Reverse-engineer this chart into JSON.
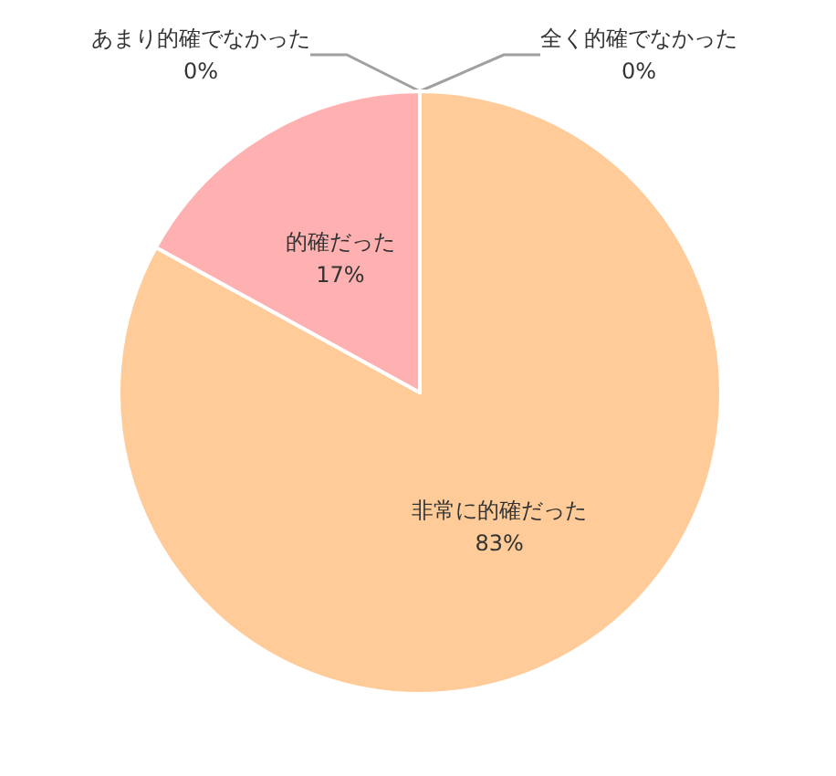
{
  "chart_data": {
    "type": "pie",
    "categories": [
      "非常に的確だった",
      "的確だった",
      "あまり的確でなかった",
      "全く的確でなかった"
    ],
    "values": [
      83,
      17,
      0,
      0
    ],
    "colors": [
      "#ffcc99",
      "#ffb0b0",
      "#c0c0c0",
      "#a0a0a0"
    ],
    "value_labels": [
      "83%",
      "17%",
      "0%",
      "0%"
    ],
    "legend": false
  }
}
